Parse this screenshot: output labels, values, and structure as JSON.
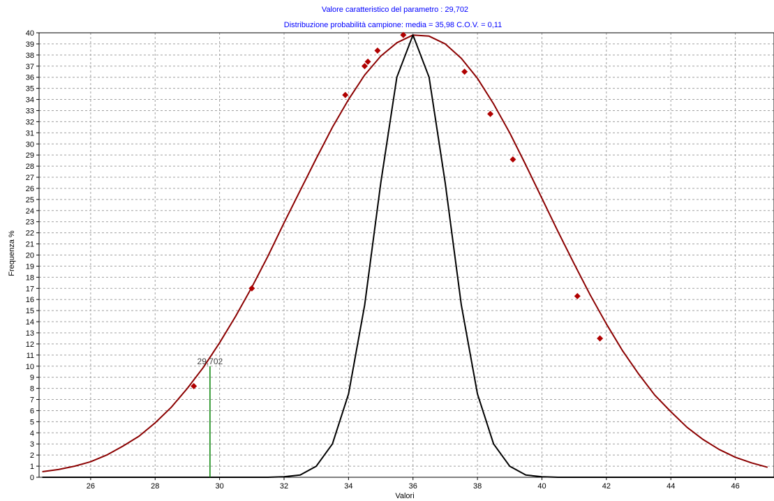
{
  "chart_data": {
    "type": "line",
    "title": "Valore caratteristico del parametro : 29,702",
    "subtitle": "Distribuzione probabilità campione: media = 35,98 C.O.V. = 0,11",
    "xlabel": "Valori",
    "ylabel": "Frequenza %",
    "xlim": [
      24.4,
      47.2
    ],
    "ylim": [
      0,
      40
    ],
    "x_ticks": [
      26,
      28,
      30,
      32,
      34,
      36,
      38,
      40,
      42,
      44,
      46
    ],
    "x_tick_labels": [
      "26",
      "28",
      "30",
      "32",
      "34",
      "36",
      "38",
      "40",
      "42",
      "44",
      "46"
    ],
    "y_ticks": [
      0,
      1,
      2,
      3,
      4,
      5,
      6,
      7,
      8,
      9,
      10,
      11,
      12,
      13,
      14,
      15,
      16,
      17,
      18,
      19,
      20,
      21,
      22,
      23,
      24,
      25,
      26,
      27,
      28,
      29,
      30,
      31,
      32,
      33,
      34,
      35,
      36,
      37,
      38,
      39,
      40
    ],
    "y_tick_labels": [
      "0",
      "1",
      "2",
      "3",
      "4",
      "5",
      "6",
      "7",
      "8",
      "9",
      "10",
      "11",
      "12",
      "13",
      "14",
      "15",
      "16",
      "17",
      "18",
      "19",
      "20",
      "21",
      "22",
      "23",
      "24",
      "25",
      "26",
      "27",
      "28",
      "29",
      "30",
      "31",
      "32",
      "33",
      "34",
      "35",
      "36",
      "37",
      "38",
      "39",
      "40"
    ],
    "grid": true,
    "series": [
      {
        "color": "#8b0000",
        "x": [
          24.5,
          25.0,
          25.5,
          26.0,
          26.5,
          27.0,
          27.5,
          28.0,
          28.5,
          29.0,
          29.5,
          30.0,
          30.5,
          31.0,
          31.5,
          32.0,
          32.5,
          33.0,
          33.5,
          34.0,
          34.5,
          35.0,
          35.5,
          36.0,
          36.5,
          37.0,
          37.5,
          38.0,
          38.5,
          39.0,
          39.5,
          40.0,
          40.5,
          41.0,
          41.5,
          42.0,
          42.5,
          43.0,
          43.5,
          44.0,
          44.5,
          45.0,
          45.5,
          46.0,
          46.5,
          47.0
        ],
        "y": [
          0.5,
          0.7,
          1.0,
          1.4,
          2.0,
          2.8,
          3.7,
          4.9,
          6.3,
          8.0,
          9.9,
          12.1,
          14.5,
          17.1,
          19.9,
          22.9,
          25.8,
          28.7,
          31.5,
          34.0,
          36.2,
          37.9,
          39.1,
          39.8,
          39.7,
          39.0,
          37.7,
          35.9,
          33.6,
          31.0,
          28.1,
          25.1,
          22.1,
          19.2,
          16.4,
          13.8,
          11.4,
          9.3,
          7.4,
          5.9,
          4.5,
          3.4,
          2.5,
          1.8,
          1.3,
          0.9
        ]
      },
      {
        "color": "#000000",
        "x": [
          24.5,
          31.5,
          32.0,
          32.5,
          33.0,
          33.5,
          34.0,
          34.5,
          35.0,
          35.5,
          36.0,
          36.5,
          37.0,
          37.5,
          38.0,
          38.5,
          39.0,
          39.5,
          40.0,
          40.5,
          47.2
        ],
        "y": [
          0,
          0,
          0.05,
          0.2,
          1.0,
          3.0,
          7.5,
          15.5,
          26.5,
          36.0,
          39.8,
          36.0,
          26.5,
          15.5,
          7.5,
          3.0,
          1.0,
          0.2,
          0.05,
          0,
          0
        ]
      }
    ],
    "markers": {
      "color": "#b00000",
      "x": [
        29.2,
        31.0,
        33.9,
        34.5,
        34.6,
        34.9,
        35.7,
        37.6,
        38.4,
        39.1,
        41.1,
        41.8
      ],
      "y": [
        8.2,
        17.0,
        34.4,
        37.0,
        37.4,
        38.4,
        39.8,
        36.5,
        32.7,
        28.6,
        16.3,
        12.5
      ]
    },
    "annotation": {
      "label": "29,702",
      "x": 29.702,
      "y": 10.0,
      "color": "#008000"
    }
  }
}
